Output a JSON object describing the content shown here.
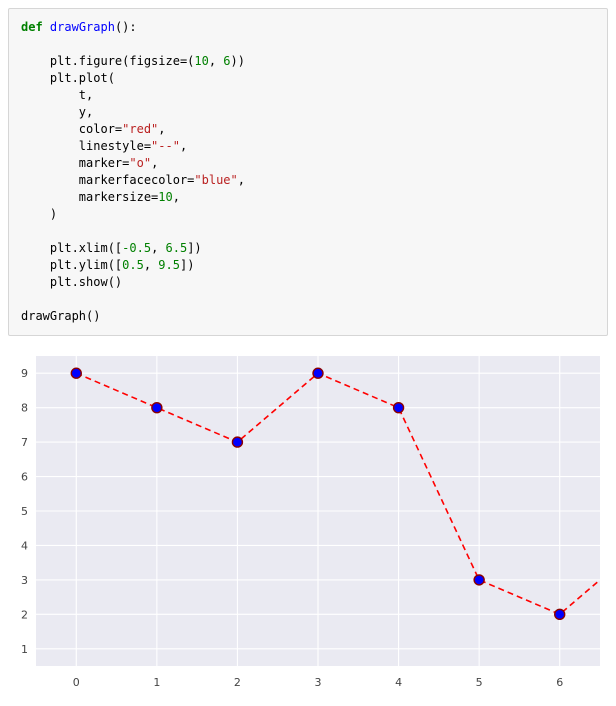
{
  "code_cell": {
    "language": "python",
    "lines": [
      [
        {
          "t": "def",
          "c": "kw"
        },
        {
          "t": " ",
          "c": "p"
        },
        {
          "t": "drawGraph",
          "c": "fn"
        },
        {
          "t": "():",
          "c": "p"
        }
      ],
      [],
      [
        {
          "t": "    plt.figure(figsize=(",
          "c": "p"
        },
        {
          "t": "10",
          "c": "num"
        },
        {
          "t": ", ",
          "c": "p"
        },
        {
          "t": "6",
          "c": "num"
        },
        {
          "t": "))",
          "c": "p"
        }
      ],
      [
        {
          "t": "    plt.plot(",
          "c": "p"
        }
      ],
      [
        {
          "t": "        t,",
          "c": "p"
        }
      ],
      [
        {
          "t": "        y,",
          "c": "p"
        }
      ],
      [
        {
          "t": "        color=",
          "c": "p"
        },
        {
          "t": "\"red\"",
          "c": "str"
        },
        {
          "t": ",",
          "c": "p"
        }
      ],
      [
        {
          "t": "        linestyle=",
          "c": "p"
        },
        {
          "t": "\"--\"",
          "c": "str"
        },
        {
          "t": ",",
          "c": "p"
        }
      ],
      [
        {
          "t": "        marker=",
          "c": "p"
        },
        {
          "t": "\"o\"",
          "c": "str"
        },
        {
          "t": ",",
          "c": "p"
        }
      ],
      [
        {
          "t": "        markerfacecolor=",
          "c": "p"
        },
        {
          "t": "\"blue\"",
          "c": "str"
        },
        {
          "t": ",",
          "c": "p"
        }
      ],
      [
        {
          "t": "        markersize=",
          "c": "p"
        },
        {
          "t": "10",
          "c": "num"
        },
        {
          "t": ",",
          "c": "p"
        }
      ],
      [
        {
          "t": "    )",
          "c": "p"
        }
      ],
      [],
      [
        {
          "t": "    plt.xlim([",
          "c": "p"
        },
        {
          "t": "-0.5",
          "c": "num"
        },
        {
          "t": ", ",
          "c": "p"
        },
        {
          "t": "6.5",
          "c": "num"
        },
        {
          "t": "])",
          "c": "p"
        }
      ],
      [
        {
          "t": "    plt.ylim([",
          "c": "p"
        },
        {
          "t": "0.5",
          "c": "num"
        },
        {
          "t": ", ",
          "c": "p"
        },
        {
          "t": "9.5",
          "c": "num"
        },
        {
          "t": "])",
          "c": "p"
        }
      ],
      [
        {
          "t": "    plt.show()",
          "c": "p"
        }
      ],
      [],
      [
        {
          "t": "drawGraph()",
          "c": "p"
        }
      ]
    ]
  },
  "chart_data": {
    "type": "line",
    "title": "",
    "xlabel": "",
    "ylabel": "",
    "x": [
      0,
      1,
      2,
      3,
      4,
      5,
      6
    ],
    "y": [
      9,
      8,
      7,
      9,
      8,
      3,
      2
    ],
    "clipped_segment_end": {
      "x": 6.5,
      "y": 3
    },
    "xlim": [
      -0.5,
      6.5
    ],
    "ylim": [
      0.5,
      9.5
    ],
    "xticks": [
      0,
      1,
      2,
      3,
      4,
      5,
      6
    ],
    "yticks": [
      1,
      2,
      3,
      4,
      5,
      6,
      7,
      8,
      9
    ],
    "grid": true,
    "legend": false,
    "background": "#eaeaf2",
    "gridcolor": "#ffffff",
    "line": {
      "color": "#ff0000",
      "style": "dashed",
      "width": 1.6
    },
    "marker": {
      "shape": "o",
      "face": "#0000ff",
      "edge": "#8b0000",
      "size": 10
    }
  }
}
